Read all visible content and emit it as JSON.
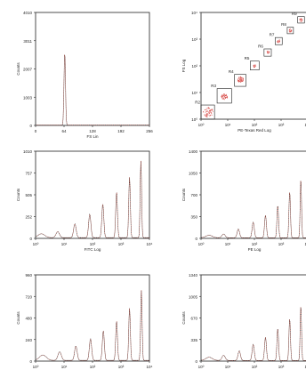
{
  "colors": {
    "trace": "#c0392b",
    "trace_dark": "#333333",
    "axis": "#222222",
    "background": "#ffffff",
    "dot": "#d9534f"
  },
  "chart_data": [
    {
      "id": "fs-histogram",
      "type": "line",
      "xlabel": "FS Lin",
      "ylabel": "Counts",
      "xscale": "linear",
      "xlim": [
        0,
        250
      ],
      "xticks": [
        "0",
        "64",
        "128",
        "192",
        "256"
      ],
      "ylim": [
        0,
        4010
      ],
      "yticks": [
        "0",
        "1003",
        "2007",
        "3011",
        "4010"
      ],
      "peaks": [
        {
          "x": 64,
          "y": 2600,
          "width": 1.6
        }
      ],
      "baseline": 10
    },
    {
      "id": "fl-scatter",
      "type": "scatter",
      "xlabel": "PE-Texas Red Log",
      "ylabel": "FS Log",
      "xscale": "log",
      "yscale": "log",
      "xlim": [
        1,
        10000
      ],
      "ylim": [
        1,
        10000
      ],
      "xticks": [
        "10⁰",
        "10¹",
        "10²",
        "10³",
        "10⁴"
      ],
      "yticks": [
        "10⁰",
        "10¹",
        "10²",
        "10³",
        "10⁴"
      ],
      "clusters": [
        {
          "x": 1.8,
          "y": 1.8
        },
        {
          "x": 7.5,
          "y": 7
        },
        {
          "x": 30,
          "y": 30
        },
        {
          "x": 100,
          "y": 100
        },
        {
          "x": 320,
          "y": 320
        },
        {
          "x": 800,
          "y": 850
        },
        {
          "x": 2200,
          "y": 2100
        },
        {
          "x": 5500,
          "y": 5200
        }
      ],
      "gates": [
        {
          "label": "R2",
          "x": [
            1,
            3.2
          ],
          "y": [
            1,
            3.4
          ]
        },
        {
          "label": "R3",
          "x": [
            4,
            14
          ],
          "y": [
            4,
            14
          ]
        },
        {
          "label": "R4",
          "x": [
            18,
            48
          ],
          "y": [
            17,
            48
          ]
        },
        {
          "label": "R5",
          "x": [
            70,
            150
          ],
          "y": [
            70,
            150
          ]
        },
        {
          "label": "R6",
          "x": [
            230,
            430
          ],
          "y": [
            230,
            430
          ]
        },
        {
          "label": "R7",
          "x": [
            600,
            1100
          ],
          "y": [
            620,
            1150
          ]
        },
        {
          "label": "R8",
          "x": [
            1700,
            2900
          ],
          "y": [
            1600,
            2800
          ]
        },
        {
          "label": "R9",
          "x": [
            4200,
            7500
          ],
          "y": [
            4000,
            7000
          ]
        }
      ]
    },
    {
      "id": "fitc-histogram",
      "type": "line",
      "xlabel": "FITC Log",
      "ylabel": "Counts",
      "xscale": "log",
      "xlim": [
        1,
        10000
      ],
      "xticks": [
        "10⁰",
        "10¹",
        "10²",
        "10³",
        "10⁴"
      ],
      "ylim": [
        0,
        1010
      ],
      "yticks": [
        "0",
        "252",
        "505",
        "757",
        "1010"
      ],
      "baseline": 8,
      "peaks": [
        {
          "x": 1.6,
          "y": 45,
          "width": 0.12
        },
        {
          "x": 6,
          "y": 70,
          "width": 0.06
        },
        {
          "x": 24,
          "y": 160,
          "width": 0.045
        },
        {
          "x": 80,
          "y": 270,
          "width": 0.04
        },
        {
          "x": 230,
          "y": 390,
          "width": 0.035
        },
        {
          "x": 700,
          "y": 530,
          "width": 0.03
        },
        {
          "x": 2000,
          "y": 700,
          "width": 0.028
        },
        {
          "x": 5000,
          "y": 890,
          "width": 0.025
        }
      ]
    },
    {
      "id": "pe-histogram",
      "type": "line",
      "xlabel": "PE Log",
      "ylabel": "Counts",
      "xscale": "log",
      "xlim": [
        1,
        10000
      ],
      "xticks": [
        "10⁰",
        "10¹",
        "10²",
        "10³",
        "10⁴"
      ],
      "ylim": [
        0,
        1400
      ],
      "yticks": [
        "0",
        "350",
        "700",
        "1050",
        "1400"
      ],
      "baseline": 10,
      "peaks": [
        {
          "x": 2,
          "y": 40,
          "width": 0.12
        },
        {
          "x": 7,
          "y": 60,
          "width": 0.06
        },
        {
          "x": 25,
          "y": 140,
          "width": 0.045
        },
        {
          "x": 90,
          "y": 250,
          "width": 0.04
        },
        {
          "x": 260,
          "y": 360,
          "width": 0.035
        },
        {
          "x": 750,
          "y": 520,
          "width": 0.03
        },
        {
          "x": 2100,
          "y": 740,
          "width": 0.028
        },
        {
          "x": 5500,
          "y": 950,
          "width": 0.025
        }
      ]
    },
    {
      "id": "fl-histogram-lower-left",
      "type": "line",
      "xlabel": "PC5 Log",
      "ylabel": "Counts",
      "xscale": "log",
      "xlim": [
        1,
        10000
      ],
      "xticks": [
        "10⁰",
        "10¹",
        "10²",
        "10³",
        "10⁴"
      ],
      "ylim": [
        0,
        960
      ],
      "yticks": [
        "0",
        "240",
        "480",
        "720",
        "960"
      ],
      "baseline": 8,
      "peaks": [
        {
          "x": 1.8,
          "y": 60,
          "width": 0.12
        },
        {
          "x": 7,
          "y": 95,
          "width": 0.06
        },
        {
          "x": 26,
          "y": 160,
          "width": 0.045
        },
        {
          "x": 85,
          "y": 240,
          "width": 0.04
        },
        {
          "x": 240,
          "y": 330,
          "width": 0.035
        },
        {
          "x": 700,
          "y": 440,
          "width": 0.03
        },
        {
          "x": 2000,
          "y": 580,
          "width": 0.028
        },
        {
          "x": 5200,
          "y": 780,
          "width": 0.025
        }
      ]
    },
    {
      "id": "pe-texas-red-histogram",
      "type": "line",
      "xlabel": "PE-Texas Red Log",
      "ylabel": "Counts",
      "xscale": "log",
      "xlim": [
        1,
        10000
      ],
      "xticks": [
        "10⁰",
        "10¹",
        "10²",
        "10³",
        "10⁴"
      ],
      "ylim": [
        0,
        1340
      ],
      "yticks": [
        "0",
        "335",
        "670",
        "1005",
        "1340"
      ],
      "baseline": 10,
      "peaks": [
        {
          "x": 2,
          "y": 50,
          "width": 0.12
        },
        {
          "x": 7,
          "y": 80,
          "width": 0.06
        },
        {
          "x": 27,
          "y": 150,
          "width": 0.045
        },
        {
          "x": 90,
          "y": 250,
          "width": 0.04
        },
        {
          "x": 260,
          "y": 360,
          "width": 0.035
        },
        {
          "x": 750,
          "y": 500,
          "width": 0.03
        },
        {
          "x": 2100,
          "y": 650,
          "width": 0.028
        },
        {
          "x": 5500,
          "y": 860,
          "width": 0.025
        }
      ]
    }
  ]
}
